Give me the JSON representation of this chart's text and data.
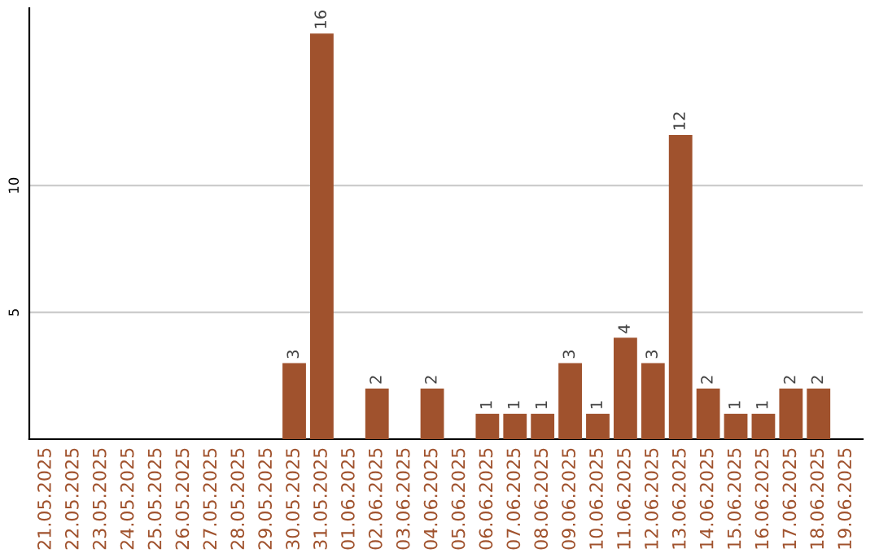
{
  "chart_data": {
    "type": "bar",
    "categories": [
      "21.05.2025",
      "22.05.2025",
      "23.05.2025",
      "24.05.2025",
      "25.05.2025",
      "26.05.2025",
      "27.05.2025",
      "28.05.2025",
      "29.05.2025",
      "30.05.2025",
      "31.05.2025",
      "01.06.2025",
      "02.06.2025",
      "03.06.2025",
      "04.06.2025",
      "05.06.2025",
      "06.06.2025",
      "07.06.2025",
      "08.06.2025",
      "09.06.2025",
      "10.06.2025",
      "11.06.2025",
      "12.06.2025",
      "13.06.2025",
      "14.06.2025",
      "15.06.2025",
      "16.06.2025",
      "17.06.2025",
      "18.06.2025",
      "19.06.2025"
    ],
    "values": [
      0,
      0,
      0,
      0,
      0,
      0,
      0,
      0,
      0,
      3,
      16,
      0,
      2,
      0,
      2,
      0,
      1,
      1,
      1,
      3,
      1,
      4,
      3,
      12,
      2,
      1,
      1,
      2,
      2,
      0
    ],
    "value_labels": [
      null,
      null,
      null,
      null,
      null,
      null,
      null,
      null,
      null,
      "3",
      "16",
      null,
      "2",
      null,
      "2",
      null,
      "1",
      "1",
      "1",
      "3",
      "1",
      "4",
      "3",
      "12",
      "2",
      "1",
      "1",
      "2",
      "2",
      null
    ],
    "color": "#a0522d",
    "ylim": [
      0,
      17
    ],
    "yticks": [
      5,
      10
    ],
    "grid": "y"
  }
}
